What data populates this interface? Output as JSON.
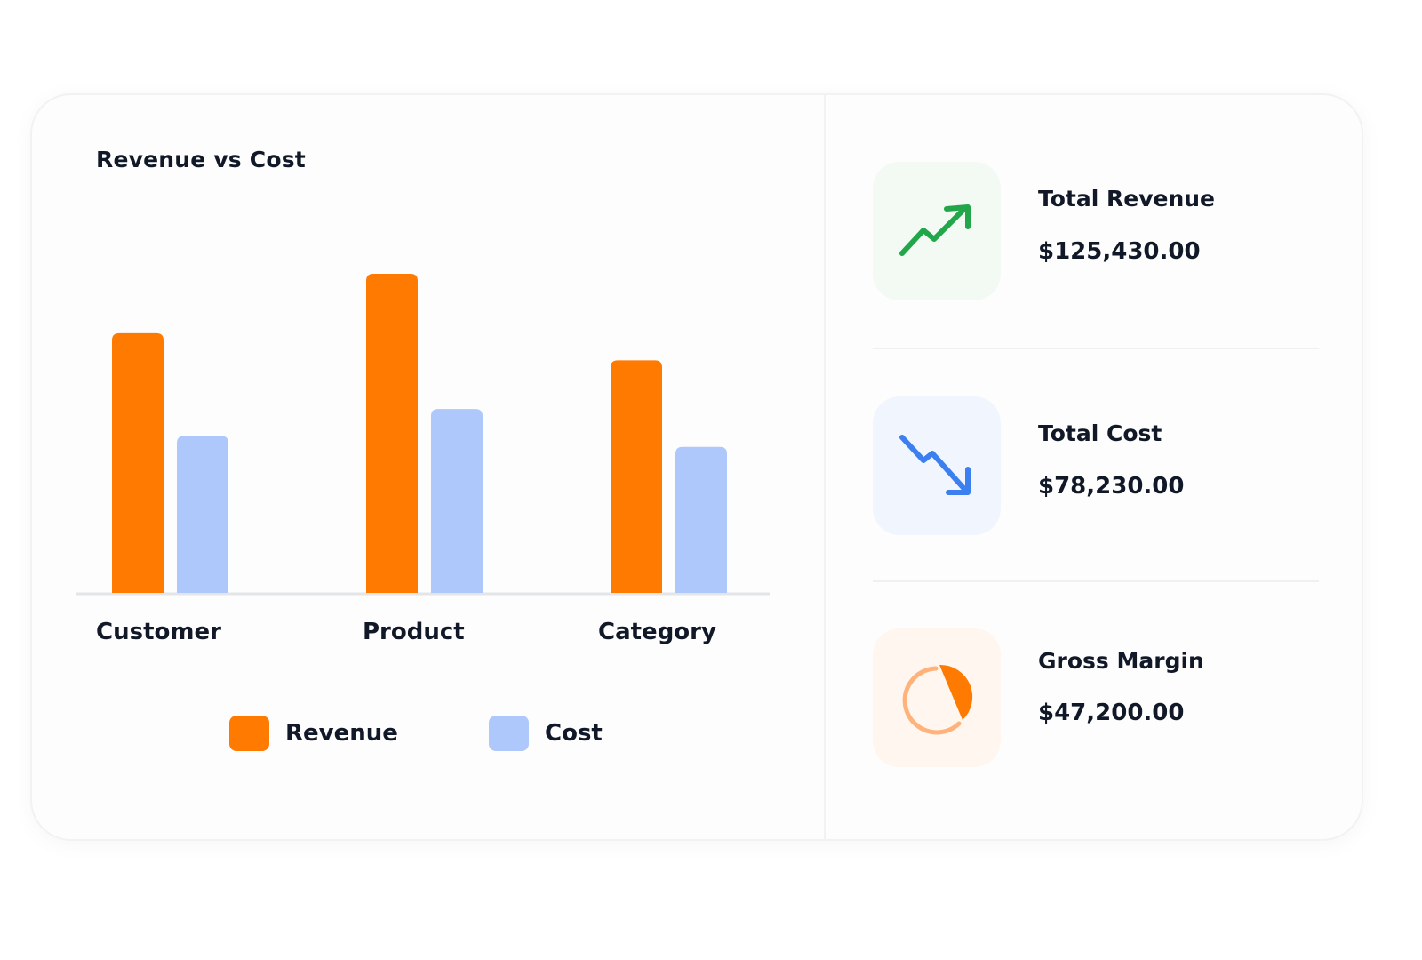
{
  "chart_data": {
    "type": "bar",
    "title": "Revenue vs Cost",
    "categories": [
      "Customer",
      "Product",
      "Category"
    ],
    "series": [
      {
        "name": "Revenue",
        "color": "#ff7a00",
        "values": [
          48,
          59,
          43
        ]
      },
      {
        "name": "Cost",
        "color": "#aec8fb",
        "values": [
          29,
          34,
          27
        ]
      }
    ],
    "ylim": [
      0,
      60
    ],
    "grid": false,
    "legend": "bottom"
  },
  "stats": [
    {
      "label": "Total Revenue",
      "value": "$125,430.00",
      "icon": "trending-up-icon",
      "icon_color": "#22a64a",
      "bg": "#f2faf3"
    },
    {
      "label": "Total Cost",
      "value": "$78,230.00",
      "icon": "trending-down-icon",
      "icon_color": "#3b7ff0",
      "bg": "#f1f6fe"
    },
    {
      "label": "Gross Margin",
      "value": "$47,200.00",
      "icon": "pie-chart-icon",
      "icon_color": "#ff7a00",
      "bg": "#fff6ef"
    }
  ]
}
